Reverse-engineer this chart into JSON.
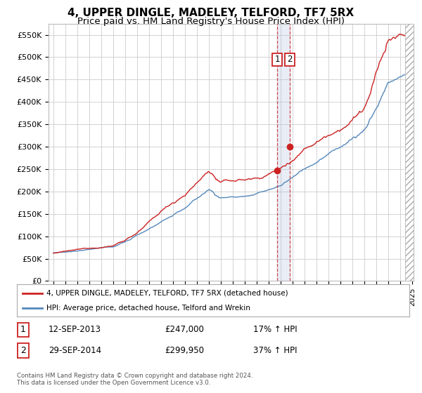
{
  "title": "4, UPPER DINGLE, MADELEY, TELFORD, TF7 5RX",
  "subtitle": "Price paid vs. HM Land Registry's House Price Index (HPI)",
  "title_fontsize": 11,
  "subtitle_fontsize": 9.5,
  "ylabel_ticks": [
    "£0",
    "£50K",
    "£100K",
    "£150K",
    "£200K",
    "£250K",
    "£300K",
    "£350K",
    "£400K",
    "£450K",
    "£500K",
    "£550K"
  ],
  "ytick_values": [
    0,
    50000,
    100000,
    150000,
    200000,
    250000,
    300000,
    350000,
    400000,
    450000,
    500000,
    550000
  ],
  "ylim": [
    0,
    575000
  ],
  "year_start": 1995,
  "year_end": 2025,
  "hpi_color": "#5588bb",
  "price_color": "#cc2222",
  "sale1_date": 2013.7,
  "sale1_price": 247000,
  "sale2_date": 2014.75,
  "sale2_price": 299950,
  "legend_house": "4, UPPER DINGLE, MADELEY, TELFORD, TF7 5RX (detached house)",
  "legend_hpi": "HPI: Average price, detached house, Telford and Wrekin",
  "table_row1": [
    "1",
    "12-SEP-2013",
    "£247,000",
    "17% ↑ HPI"
  ],
  "table_row2": [
    "2",
    "29-SEP-2014",
    "£299,950",
    "37% ↑ HPI"
  ],
  "footer": "Contains HM Land Registry data © Crown copyright and database right 2024.\nThis data is licensed under the Open Government Licence v3.0.",
  "background_color": "#ffffff",
  "grid_color": "#cccccc"
}
